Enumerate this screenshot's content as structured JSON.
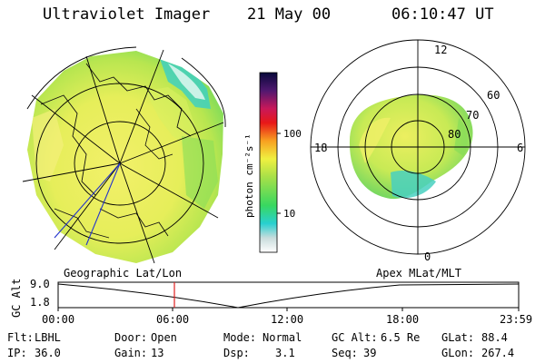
{
  "header": {
    "instrument": "Ultraviolet Imager",
    "date": "21 May 00",
    "time": "06:10:47 UT"
  },
  "colorbar": {
    "unit_label": "photon cm⁻²s⁻¹",
    "tick_100": "100",
    "tick_10": "10"
  },
  "polar_plot": {
    "mlt_12": "12",
    "mlt_18": "18",
    "mlt_6": "6",
    "mlt_0": "0",
    "lat_60": "60",
    "lat_70": "70",
    "lat_80": "80"
  },
  "altitude_panel": {
    "left_title": "Geographic Lat/Lon",
    "right_title": "Apex MLat/MLT",
    "y_label": "GC Alt",
    "y_top": "9.0",
    "y_bottom": "1.8",
    "x_ticks": [
      "00:00",
      "06:00",
      "12:00",
      "18:00",
      "23:59"
    ]
  },
  "footer": {
    "row1": [
      {
        "label": "Flt:",
        "value": "LBHL"
      },
      {
        "label": "Door:",
        "value": "Open"
      },
      {
        "label": "Mode:",
        "value": "Normal"
      },
      {
        "label": "GC Alt:",
        "value": "6.5 Re"
      },
      {
        "label": "GLat:",
        "value": "88.4"
      }
    ],
    "row2": [
      {
        "label": "IP:",
        "value": "36.0"
      },
      {
        "label": "Gain:",
        "value": "13"
      },
      {
        "label": "Dsp:",
        "value": "3.1"
      },
      {
        "label": "Seq:",
        "value": "39"
      },
      {
        "label": "GLon:",
        "value": "267.4"
      }
    ]
  }
}
